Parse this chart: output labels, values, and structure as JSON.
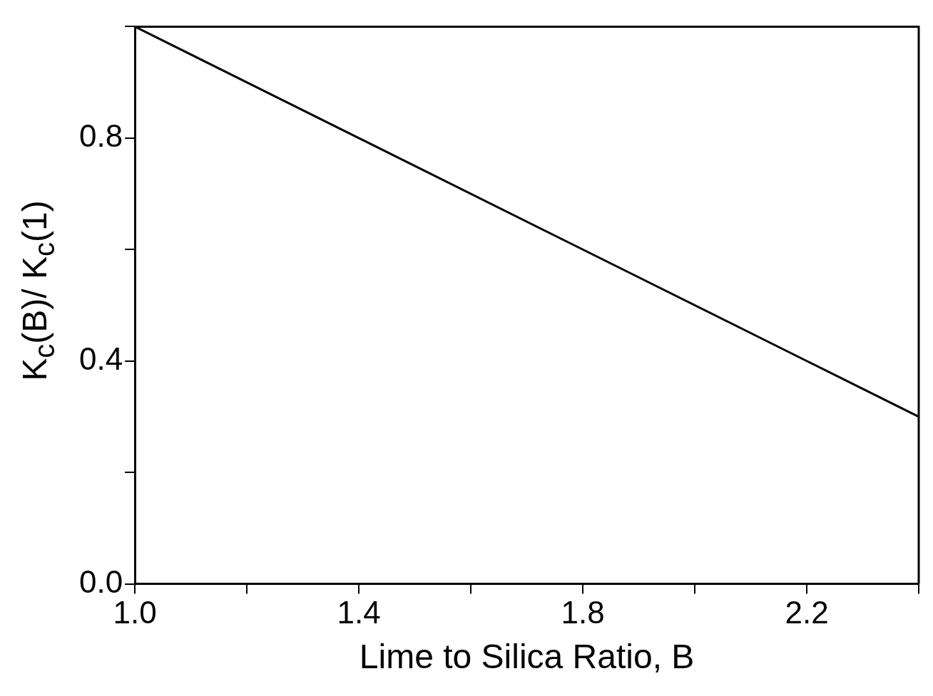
{
  "chart_data": {
    "type": "line",
    "xlabel": "Lime to Silica Ratio, B",
    "ylabel": "K$_{c}$(B)/ K$_{c}$(1)",
    "x": [
      1.0,
      1.4,
      1.8,
      2.2,
      2.4
    ],
    "series": [
      {
        "color": "#000000",
        "values": [
          1.0,
          0.8,
          0.6,
          0.4,
          0.3
        ]
      }
    ],
    "xlim": [
      1.0,
      2.4
    ],
    "xticks": [
      {
        "value": 1.0,
        "label": "1.0"
      },
      {
        "value": 1.2,
        "label": null
      },
      1.4,
      {
        "value": 1.6,
        "label": null
      },
      1.8,
      {
        "value": 2.0,
        "label": null
      },
      2.2,
      {
        "value": 2.4,
        "label": null
      }
    ],
    "ylim": [
      0,
      1.0
    ],
    "yticks": [
      {
        "value": 0,
        "label": "0.0"
      },
      {
        "value": 0.2,
        "label": null
      },
      0.4,
      {
        "value": 0.6,
        "label": null
      },
      0.8,
      {
        "value": 1.0,
        "label": null
      }
    ],
    "grid": false,
    "legend": false,
    "marker": "none",
    "line_style": "solid"
  }
}
